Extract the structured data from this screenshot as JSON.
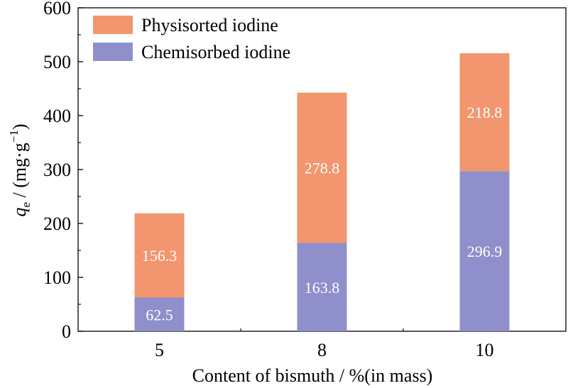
{
  "chart_data": {
    "type": "bar",
    "stacked": true,
    "categories": [
      "5",
      "8",
      "10"
    ],
    "series": [
      {
        "name": "Chemisorbed iodine",
        "values": [
          62.5,
          163.8,
          296.9
        ],
        "labels": [
          "62.5",
          "163.8",
          "296.9"
        ],
        "color": "#8f8fcb"
      },
      {
        "name": "Physisorted iodine",
        "values": [
          156.3,
          278.8,
          218.8
        ],
        "labels": [
          "156.3",
          "278.8",
          "218.8"
        ],
        "color": "#f2966f"
      }
    ],
    "xlabel": "Content of bismuth / %(in mass)",
    "ylabel_main": "q",
    "ylabel_sub": "e",
    "ylabel_rest": " / (mg·g",
    "ylabel_sup": "−1",
    "ylabel_close": ")",
    "ylim": [
      0,
      600
    ],
    "yticks": [
      0,
      100,
      200,
      300,
      400,
      500,
      600
    ],
    "legend_position": "top-left",
    "grid": false
  }
}
